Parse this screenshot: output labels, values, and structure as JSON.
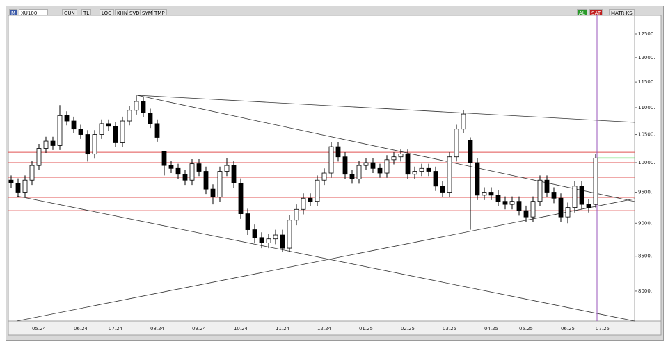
{
  "toolbar": {
    "menu": "M",
    "symbol": "XU100",
    "buttons": [
      "GUN",
      "TL",
      "LOG",
      "KHN",
      "SVD",
      "SYM",
      "TMP"
    ],
    "buy": "AL",
    "sell": "SAT",
    "matrix": "MATR-KS"
  },
  "chart_data": {
    "type": "candlestick",
    "log_scale": true,
    "categories": [
      null,
      null,
      null,
      null,
      "05.24",
      null,
      null,
      null,
      null,
      null,
      "06.24",
      null,
      null,
      null,
      null,
      "07.24",
      null,
      null,
      null,
      null,
      null,
      "08.24",
      null,
      null,
      null,
      null,
      null,
      "09.24",
      null,
      null,
      null,
      null,
      null,
      "10.24",
      null,
      null,
      null,
      null,
      null,
      "11.24",
      null,
      null,
      null,
      null,
      null,
      "12.24",
      null,
      null,
      null,
      null,
      null,
      "01.25",
      null,
      null,
      null,
      null,
      null,
      "02.25",
      null,
      null,
      null,
      null,
      null,
      "03.25",
      null,
      null,
      null,
      null,
      null,
      "04.25",
      null,
      null,
      null,
      null,
      "05.25",
      null,
      null,
      null,
      null,
      null,
      "06.25",
      null,
      null,
      null,
      null,
      "07.25"
    ],
    "open": [
      9700,
      9650,
      9500,
      9700,
      9950,
      10250,
      10380,
      10300,
      10850,
      10750,
      10600,
      10500,
      10150,
      10500,
      10700,
      10650,
      10350,
      10750,
      10950,
      11120,
      10900,
      10700,
      10200,
      9950,
      9900,
      9800,
      9700,
      9980,
      9850,
      9550,
      9420,
      9850,
      9950,
      9650,
      9150,
      8900,
      8780,
      8700,
      8760,
      8820,
      8620,
      9050,
      9220,
      9400,
      9350,
      9700,
      9820,
      10280,
      10100,
      9800,
      9720,
      9950,
      10000,
      9900,
      9820,
      10050,
      10100,
      10150,
      9800,
      9850,
      9900,
      9850,
      9600,
      9500,
      10100,
      10600,
      10400,
      10000,
      9450,
      9500,
      9450,
      9350,
      9300,
      9350,
      9200,
      9100,
      9350,
      9700,
      9500,
      9400,
      9100,
      9250,
      9600,
      9300,
      9300,
      null
    ],
    "high": [
      9780,
      9730,
      9780,
      10030,
      10330,
      10460,
      10460,
      11050,
      10930,
      10830,
      10680,
      10580,
      10580,
      10780,
      10780,
      10730,
      10830,
      11030,
      11240,
      11200,
      10980,
      10780,
      10200,
      10030,
      9980,
      9880,
      10060,
      10060,
      9930,
      9630,
      9930,
      10080,
      10030,
      9730,
      9230,
      8980,
      8860,
      8840,
      8900,
      8900,
      9130,
      9300,
      9480,
      9480,
      9780,
      9900,
      10360,
      10360,
      10180,
      9880,
      10030,
      10080,
      10080,
      9980,
      10130,
      10180,
      10230,
      10230,
      9930,
      9980,
      9980,
      9930,
      9680,
      10180,
      10680,
      10960,
      10450,
      10080,
      9580,
      9580,
      9530,
      9430,
      9430,
      9430,
      9280,
      9430,
      9780,
      9780,
      9580,
      9480,
      9330,
      9680,
      9680,
      9380,
      10150,
      null
    ],
    "low": [
      9570,
      9420,
      9420,
      9620,
      9870,
      10170,
      10220,
      10220,
      10670,
      10520,
      10420,
      10020,
      10070,
      10420,
      10570,
      10270,
      10270,
      10670,
      10870,
      10820,
      10620,
      10370,
      9780,
      9820,
      9720,
      9620,
      9620,
      9770,
      9470,
      9300,
      9340,
      9770,
      9570,
      9070,
      8820,
      8700,
      8620,
      8620,
      8680,
      8560,
      8560,
      8970,
      9140,
      9270,
      9270,
      9620,
      9740,
      10020,
      9720,
      9640,
      9640,
      9870,
      9820,
      9740,
      9740,
      9970,
      10020,
      9720,
      9720,
      9770,
      9770,
      9520,
      9420,
      9420,
      10020,
      10520,
      8900,
      9370,
      9370,
      9370,
      9270,
      9220,
      9220,
      9120,
      9020,
      9020,
      9270,
      9420,
      9320,
      9020,
      9000,
      9170,
      9220,
      9170,
      9250,
      null
    ],
    "close": [
      9650,
      9500,
      9700,
      9950,
      10250,
      10380,
      10300,
      10850,
      10750,
      10600,
      10500,
      10150,
      10500,
      10700,
      10650,
      10350,
      10750,
      10950,
      11120,
      10900,
      10700,
      10450,
      9950,
      9900,
      9800,
      9700,
      9980,
      9850,
      9550,
      9420,
      9850,
      9950,
      9650,
      9150,
      8900,
      8780,
      8700,
      8760,
      8820,
      8620,
      9050,
      9220,
      9400,
      9350,
      9700,
      9820,
      10280,
      10100,
      9800,
      9720,
      9950,
      10000,
      9900,
      9820,
      10050,
      10100,
      10150,
      9800,
      9850,
      9900,
      9850,
      9600,
      9500,
      10100,
      10600,
      10880,
      10000,
      9450,
      9500,
      9450,
      9350,
      9300,
      9350,
      9200,
      9100,
      9350,
      9700,
      9500,
      9400,
      9100,
      9250,
      9600,
      9300,
      9250,
      10080,
      null
    ],
    "up_color": "#ffffff",
    "down_color": "#000000",
    "ylim": [
      7595,
      12914
    ],
    "yticks": [
      {
        "value": 8000,
        "label": "8000."
      },
      {
        "value": 8500,
        "label": "8500."
      },
      {
        "value": 9000,
        "label": "9000."
      },
      {
        "value": 9500,
        "label": "9500."
      },
      {
        "value": 10000,
        "label": "10000."
      },
      {
        "value": 10500,
        "label": "10500."
      },
      {
        "value": 11000,
        "label": "11000."
      },
      {
        "value": 11500,
        "label": "11500."
      },
      {
        "value": 12000,
        "label": "12000."
      },
      {
        "value": 12500,
        "label": "12500."
      }
    ],
    "hlines": [
      10400,
      10180,
      10000,
      9750,
      9415,
      9200
    ],
    "hline_color": "#e05050",
    "green_line": {
      "value": 10080,
      "x": [
        84.2,
        89.6
      ],
      "color": "#66dd66"
    },
    "trendlines": [
      {
        "x": [
          18.1,
          89.6
        ],
        "y": [
          11241,
          10725
        ]
      },
      {
        "x": [
          18.1,
          89.6
        ],
        "y": [
          11241,
          9346
        ]
      },
      {
        "x": [
          0.8,
          89.6
        ],
        "y": [
          9437,
          7595
        ]
      },
      {
        "x": [
          0.8,
          89.6
        ],
        "y": [
          7595,
          9392
        ]
      }
    ],
    "cursor_x": 84.2,
    "cursor_color": "#9955bb"
  }
}
